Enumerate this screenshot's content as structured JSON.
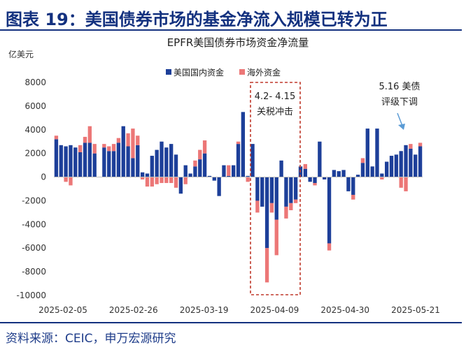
{
  "figure": {
    "label": "图表 19：美国债券市场的基金净流入规模已转为正",
    "source": "资料来源：CEIC，申万宏源研究"
  },
  "colors": {
    "domestic": "#1d3f99",
    "foreign": "#ec7777",
    "title": "#13317f",
    "annotation": "#c0392b",
    "arrow": "#5b9bd5"
  },
  "chart_data": {
    "type": "bar",
    "stacked": true,
    "title": "EPFR美国债券市场资金净流量",
    "unit_label": "亿美元",
    "ylim": [
      -10000,
      8000
    ],
    "yticks": [
      -10000,
      -8000,
      -6000,
      -4000,
      -2000,
      0,
      2000,
      4000,
      6000,
      8000
    ],
    "xtick_labels": [
      "2025-02-05",
      "2025-02-26",
      "2025-03-19",
      "2025-04-09",
      "2025-04-30",
      "2025-05-21"
    ],
    "legend_position": "top",
    "series": [
      {
        "name": "美国国内资金",
        "values": [
          3200,
          2700,
          2600,
          2700,
          2500,
          2100,
          2900,
          2900,
          2000,
          0,
          2500,
          2200,
          2200,
          2900,
          4300,
          2600,
          1600,
          2700,
          400,
          300,
          1800,
          2300,
          3000,
          2500,
          2800,
          1900,
          -1400,
          1000,
          300,
          900,
          1500,
          2000,
          100,
          -300,
          -1600,
          1000,
          100,
          1000,
          2800,
          5500,
          100,
          2800,
          -2000,
          -2500,
          -6000,
          -2200,
          -3600,
          1400,
          -2500,
          -2200,
          -1900,
          900,
          700,
          -400,
          -500,
          3000,
          -200,
          -5600,
          600,
          500,
          600,
          -1200,
          -1500,
          200,
          1200,
          4100,
          900,
          4100,
          300,
          1300,
          1800,
          1900,
          2200,
          2700,
          2400,
          1900,
          2600
        ]
      },
      {
        "name": "海外资金",
        "values": [
          300,
          0,
          -400,
          -700,
          0,
          600,
          500,
          1400,
          800,
          0,
          300,
          400,
          600,
          400,
          0,
          1100,
          2500,
          800,
          -200,
          -800,
          -800,
          -600,
          -500,
          -500,
          -500,
          -900,
          0,
          -600,
          0,
          500,
          800,
          1100,
          0,
          0,
          0,
          0,
          900,
          0,
          200,
          0,
          -400,
          0,
          -1000,
          0,
          -2900,
          -800,
          -3000,
          0,
          -1000,
          -600,
          -300,
          0,
          400,
          0,
          -200,
          0,
          0,
          -600,
          0,
          0,
          0,
          0,
          -400,
          0,
          400,
          0,
          0,
          0,
          -200,
          0,
          0,
          0,
          -900,
          -1200,
          400,
          0,
          300
        ]
      }
    ],
    "annotations": [
      {
        "text_line1": "4.2- 4.15",
        "text_line2": "关税冲击"
      },
      {
        "text_line1": "5.16 美债",
        "text_line2": "评级下调"
      }
    ]
  }
}
